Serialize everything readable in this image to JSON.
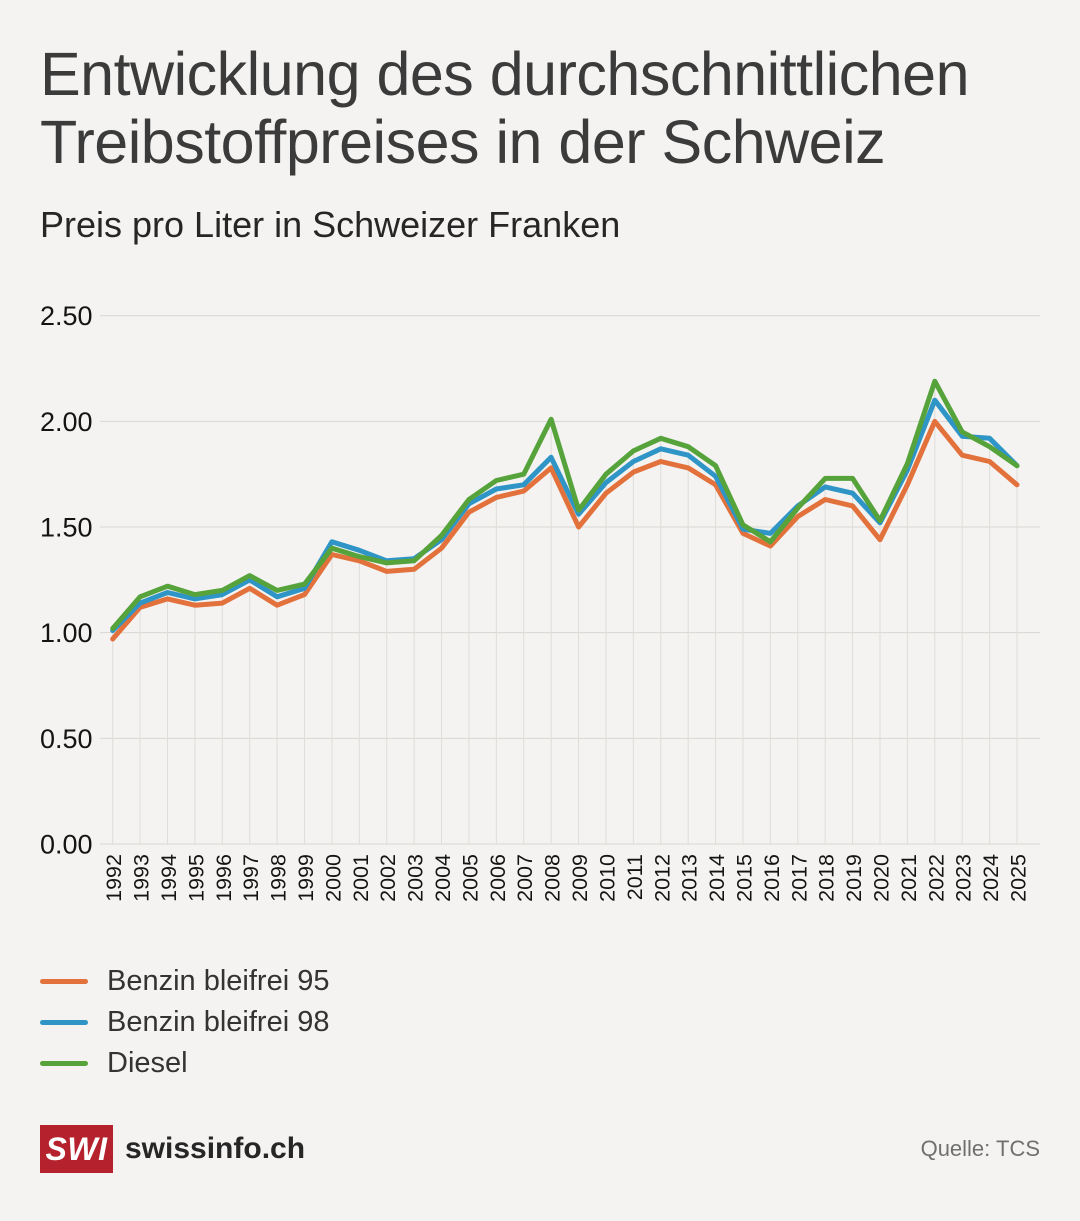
{
  "title": "Entwicklung des durchschnittlichen Treibstoffpreises in der Schweiz",
  "subtitle": "Preis pro Liter in Schweizer Franken",
  "source": "Quelle: TCS",
  "brand": {
    "logo_text": "SWI",
    "name": "swissinfo.ch",
    "logo_red": "#b5212d"
  },
  "colors": {
    "background": "#f4f3f1",
    "h_gridline": "#d8d7d3",
    "v_gridline": "#deddd9",
    "tick_label": "#141414"
  },
  "chart_data": {
    "type": "line",
    "x": [
      1992,
      1993,
      1994,
      1995,
      1996,
      1997,
      1998,
      1999,
      2000,
      2001,
      2002,
      2003,
      2004,
      2005,
      2006,
      2007,
      2008,
      2009,
      2010,
      2011,
      2012,
      2013,
      2014,
      2015,
      2016,
      2017,
      2018,
      2019,
      2020,
      2021,
      2022,
      2023,
      2024,
      2025
    ],
    "series": [
      {
        "name": "Benzin bleifrei 95",
        "color": "#e2713c",
        "values": [
          0.97,
          1.12,
          1.16,
          1.13,
          1.14,
          1.21,
          1.13,
          1.18,
          1.37,
          1.34,
          1.29,
          1.3,
          1.4,
          1.57,
          1.64,
          1.67,
          1.78,
          1.5,
          1.66,
          1.76,
          1.81,
          1.78,
          1.7,
          1.47,
          1.41,
          1.55,
          1.63,
          1.6,
          1.44,
          1.7,
          2.0,
          1.84,
          1.81,
          1.7
        ]
      },
      {
        "name": "Benzin bleifrei 98",
        "color": "#2e95c6",
        "values": [
          1.01,
          1.14,
          1.19,
          1.16,
          1.18,
          1.25,
          1.17,
          1.21,
          1.43,
          1.39,
          1.34,
          1.35,
          1.44,
          1.61,
          1.68,
          1.7,
          1.83,
          1.56,
          1.71,
          1.81,
          1.87,
          1.84,
          1.74,
          1.49,
          1.47,
          1.6,
          1.69,
          1.66,
          1.52,
          1.77,
          2.1,
          1.93,
          1.92,
          1.79
        ]
      },
      {
        "name": "Diesel",
        "color": "#57a33b",
        "values": [
          1.02,
          1.17,
          1.22,
          1.18,
          1.2,
          1.27,
          1.2,
          1.23,
          1.4,
          1.36,
          1.33,
          1.34,
          1.46,
          1.63,
          1.72,
          1.75,
          2.01,
          1.58,
          1.75,
          1.86,
          1.92,
          1.88,
          1.79,
          1.51,
          1.43,
          1.59,
          1.73,
          1.73,
          1.53,
          1.8,
          2.19,
          1.95,
          1.88,
          1.79
        ]
      }
    ],
    "ylim": [
      0,
      2.5
    ],
    "ytick_values": [
      0,
      0.5,
      1.0,
      1.5,
      2.0,
      2.5
    ],
    "ytick_labels": [
      "0.00",
      "0.50",
      "1.00",
      "1.50",
      "2.00",
      "2.50"
    ],
    "grid": true,
    "legend_position": "bottom-left"
  }
}
